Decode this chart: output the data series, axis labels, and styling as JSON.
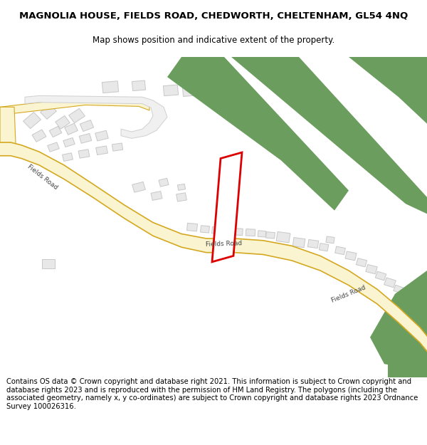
{
  "title": "MAGNOLIA HOUSE, FIELDS ROAD, CHEDWORTH, CHELTENHAM, GL54 4NQ",
  "subtitle": "Map shows position and indicative extent of the property.",
  "footer": "Contains OS data © Crown copyright and database right 2021. This information is subject to Crown copyright and database rights 2023 and is reproduced with the permission of HM Land Registry. The polygons (including the associated geometry, namely x, y co-ordinates) are subject to Crown copyright and database rights 2023 Ordnance Survey 100026316.",
  "map_bg": "#ffffff",
  "road_fill": "#faf5d0",
  "road_edge": "#d4a820",
  "green_fill": "#6b9e5e",
  "building_fill": "#e8e8e8",
  "building_edge": "#c8c8c8",
  "lane_fill": "#f0f0f0",
  "lane_edge": "#d0d0d0",
  "plot_edge": "#dd0000",
  "title_fontsize": 9.5,
  "subtitle_fontsize": 8.5,
  "footer_fontsize": 7.2
}
